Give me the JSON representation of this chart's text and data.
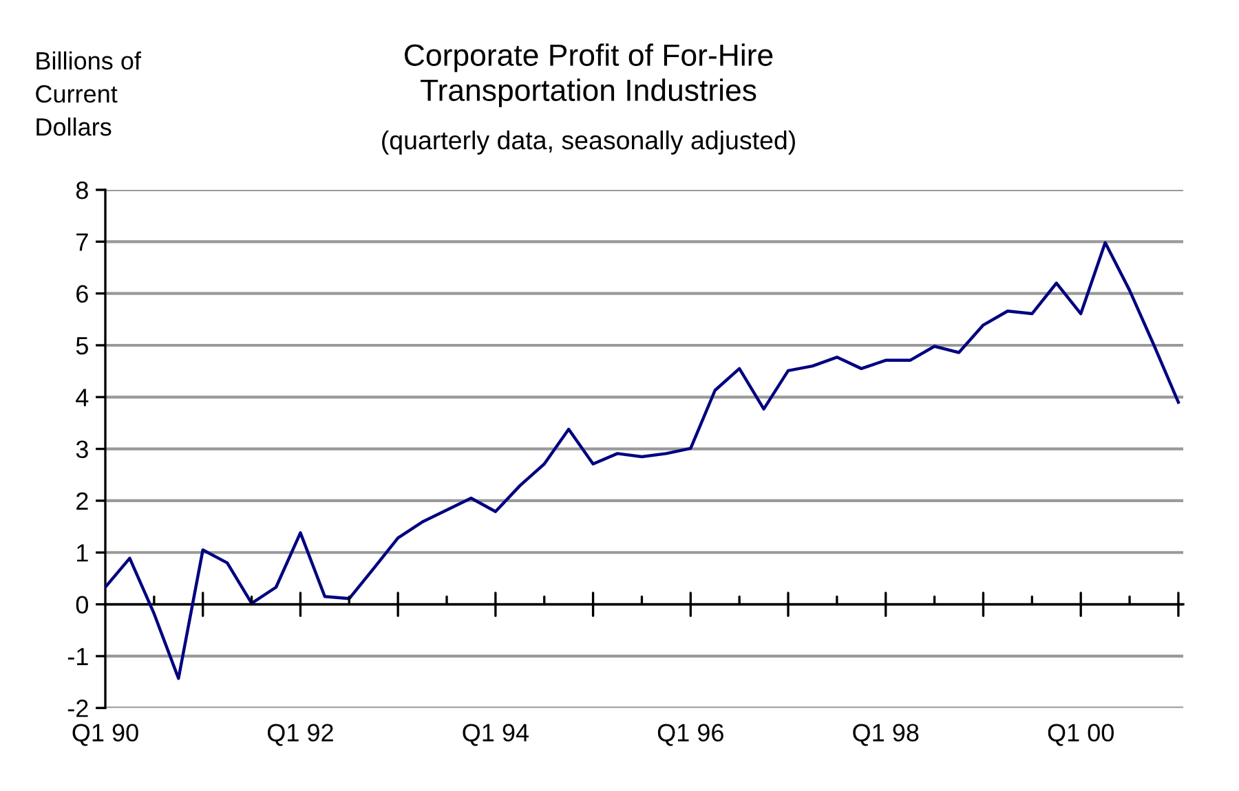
{
  "chart_data": {
    "type": "line",
    "title": "Corporate Profit of For-Hire\nTransportation Industries",
    "subtitle": "(quarterly data, seasonally adjusted)",
    "ylabel": "Billions of\nCurrent\nDollars",
    "categories": [
      "Q1 90",
      null,
      null,
      null,
      null,
      null,
      null,
      null,
      "Q1 92",
      null,
      null,
      null,
      null,
      null,
      null,
      null,
      "Q1 94",
      null,
      null,
      null,
      null,
      null,
      null,
      null,
      "Q1 96",
      null,
      null,
      null,
      null,
      null,
      null,
      null,
      "Q1 98",
      null,
      null,
      null,
      null,
      null,
      null,
      null,
      "Q1 00",
      null,
      null,
      null,
      null
    ],
    "series": [
      {
        "color": "#000080",
        "values": [
          0.33,
          0.89,
          -0.18,
          -1.43,
          1.05,
          0.8,
          0.02,
          0.33,
          1.38,
          0.15,
          0.11,
          0.69,
          1.28,
          1.59,
          1.82,
          2.05,
          1.79,
          2.29,
          2.71,
          3.38,
          2.71,
          2.91,
          2.85,
          2.91,
          3.01,
          4.13,
          4.55,
          3.77,
          4.51,
          4.6,
          4.77,
          4.55,
          4.71,
          4.71,
          4.98,
          4.86,
          5.39,
          5.66,
          5.61,
          6.2,
          5.61,
          6.98,
          6.06,
          5.0,
          3.9
        ]
      }
    ],
    "ylim": [
      -2,
      8
    ],
    "yticks": [
      -2,
      -1,
      0,
      1,
      2,
      3,
      4,
      5,
      6,
      7,
      8
    ],
    "grid": "y",
    "legend": false,
    "marker": "none",
    "line_style": "solid"
  }
}
